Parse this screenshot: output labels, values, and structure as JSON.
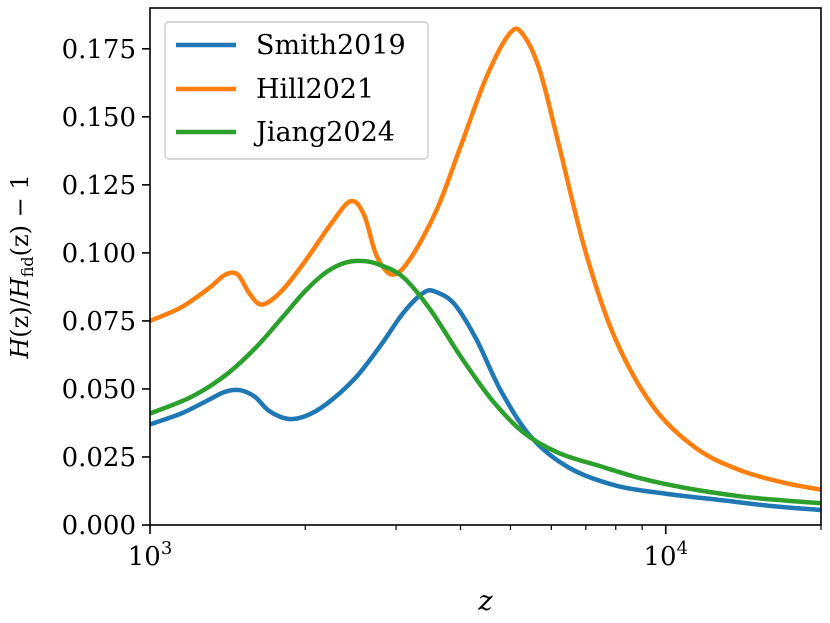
{
  "chart_data": {
    "type": "line",
    "xscale": "log",
    "xlim": [
      1000,
      20000
    ],
    "ylim": [
      0,
      0.19
    ],
    "xlabel": "z",
    "ylabel": "H(z)/H_fid(z) − 1",
    "ylabel_parts": {
      "h1": "H",
      "z1": "(z)",
      "sep": "/",
      "h2": "H",
      "sub": "fid",
      "z2": "(z)",
      "minus": " − 1"
    },
    "x_ticks": [
      {
        "value": 1000,
        "base": "10",
        "exp": "3"
      },
      {
        "value": 10000,
        "base": "10",
        "exp": "4"
      }
    ],
    "y_ticks": [
      {
        "value": 0.0,
        "label": "0.000"
      },
      {
        "value": 0.025,
        "label": "0.025"
      },
      {
        "value": 0.05,
        "label": "0.050"
      },
      {
        "value": 0.075,
        "label": "0.075"
      },
      {
        "value": 0.1,
        "label": "0.100"
      },
      {
        "value": 0.125,
        "label": "0.125"
      },
      {
        "value": 0.15,
        "label": "0.150"
      },
      {
        "value": 0.175,
        "label": "0.175"
      }
    ],
    "legend_position": "top-left",
    "series": [
      {
        "name": "Smith2019",
        "color": "#1f77b4",
        "x": [
          1000,
          1150,
          1300,
          1400,
          1500,
          1600,
          1700,
          1850,
          2000,
          2200,
          2500,
          2800,
          3100,
          3400,
          3600,
          3900,
          4300,
          4800,
          5500,
          6500,
          8000,
          10000,
          13000,
          16000,
          20000
        ],
        "y": [
          0.037,
          0.041,
          0.046,
          0.049,
          0.0495,
          0.047,
          0.042,
          0.039,
          0.04,
          0.0445,
          0.054,
          0.066,
          0.078,
          0.0855,
          0.0855,
          0.081,
          0.068,
          0.049,
          0.032,
          0.021,
          0.0145,
          0.0115,
          0.009,
          0.007,
          0.0055
        ]
      },
      {
        "name": "Hill2021",
        "color": "#ff7f0e",
        "x": [
          1000,
          1150,
          1300,
          1400,
          1480,
          1560,
          1650,
          1800,
          2000,
          2250,
          2450,
          2600,
          2750,
          2950,
          3200,
          3600,
          4000,
          4500,
          5000,
          5300,
          5700,
          6200,
          7000,
          8000,
          9500,
          11500,
          14000,
          17000,
          20000
        ],
        "y": [
          0.075,
          0.08,
          0.087,
          0.092,
          0.092,
          0.085,
          0.081,
          0.086,
          0.097,
          0.111,
          0.119,
          0.114,
          0.099,
          0.092,
          0.098,
          0.116,
          0.139,
          0.165,
          0.181,
          0.18,
          0.167,
          0.14,
          0.1,
          0.068,
          0.043,
          0.028,
          0.02,
          0.0155,
          0.013
        ]
      },
      {
        "name": "Jiang2024",
        "color": "#2ca02c",
        "x": [
          1000,
          1200,
          1400,
          1600,
          1800,
          2000,
          2200,
          2400,
          2600,
          2800,
          3100,
          3500,
          4000,
          4600,
          5300,
          6200,
          7500,
          9000,
          11000,
          14000,
          17000,
          20000
        ],
        "y": [
          0.041,
          0.047,
          0.055,
          0.065,
          0.076,
          0.086,
          0.093,
          0.0965,
          0.097,
          0.0955,
          0.091,
          0.079,
          0.062,
          0.046,
          0.034,
          0.0265,
          0.0215,
          0.017,
          0.0135,
          0.0105,
          0.009,
          0.008
        ]
      }
    ]
  }
}
